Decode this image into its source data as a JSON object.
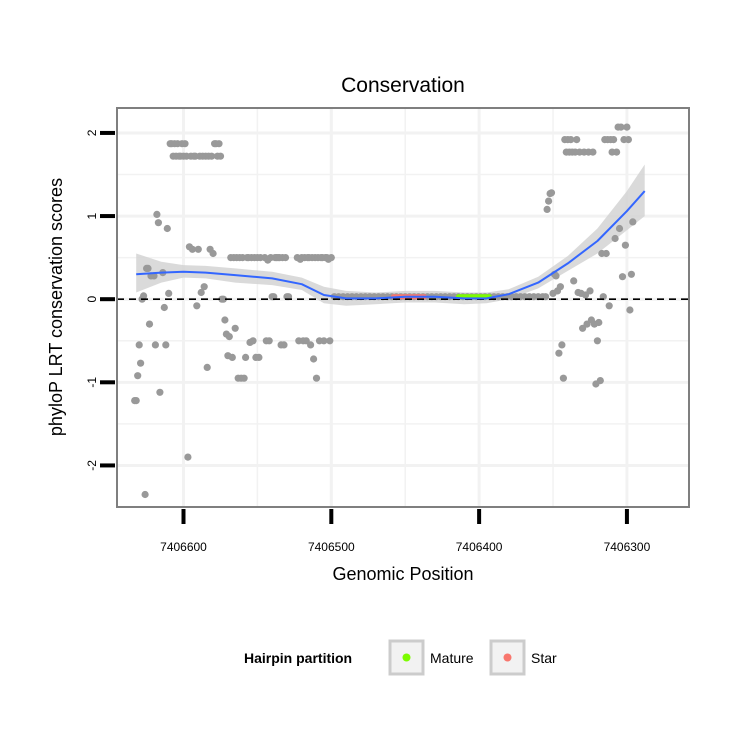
{
  "chart_data": {
    "type": "scatter",
    "title": "Conservation",
    "xlabel": "Genomic Position",
    "ylabel": "phyloP LRT conservation scores",
    "x_reversed": true,
    "xlim": [
      7406645,
      7406258
    ],
    "ylim": [
      -2.5,
      2.3
    ],
    "x_ticks": [
      7406600,
      7406500,
      7406400,
      7406300
    ],
    "x_tick_labels": [
      "7406600",
      "7406500",
      "7406400",
      "7406300"
    ],
    "y_ticks": [
      -2,
      -1,
      0,
      1,
      2
    ],
    "y_tick_labels": [
      "-2",
      "-1",
      "0",
      "1",
      "2"
    ],
    "reference_line": {
      "y": 0,
      "style": "dashed"
    },
    "colors": {
      "points": "#999999",
      "smooth": "#3366FF",
      "ribbon": "#d3d3d3",
      "mature": "#7CFC00",
      "star": "#F8766D",
      "grid": "#f2f2f2",
      "panel_border": "#7f7f7f"
    },
    "smooth_line": {
      "x": [
        7406632,
        7406615,
        7406600,
        7406585,
        7406565,
        7406540,
        7406520,
        7406505,
        7406490,
        7406470,
        7406450,
        7406430,
        7406410,
        7406395,
        7406380,
        7406360,
        7406340,
        7406320,
        7406300,
        7406288
      ],
      "y": [
        0.3,
        0.32,
        0.33,
        0.32,
        0.29,
        0.25,
        0.18,
        0.05,
        0.01,
        0.01,
        0.03,
        0.03,
        0.01,
        0.01,
        0.06,
        0.2,
        0.43,
        0.7,
        1.06,
        1.3
      ],
      "ci_low": [
        0.08,
        0.2,
        0.26,
        0.25,
        0.2,
        0.17,
        0.11,
        -0.05,
        -0.08,
        -0.06,
        -0.04,
        -0.04,
        -0.06,
        -0.05,
        0.0,
        0.13,
        0.34,
        0.55,
        0.83,
        1.0
      ],
      "ci_high": [
        0.55,
        0.45,
        0.41,
        0.4,
        0.37,
        0.33,
        0.26,
        0.15,
        0.1,
        0.08,
        0.1,
        0.1,
        0.08,
        0.08,
        0.12,
        0.27,
        0.52,
        0.85,
        1.3,
        1.62
      ]
    },
    "partitions": [
      {
        "name": "Mature",
        "x_range": [
          7406414,
          7406393
        ]
      },
      {
        "name": "Star",
        "x_range": [
          7406458,
          7406437
        ]
      }
    ],
    "points": [
      [
        7406633,
        -1.22
      ],
      [
        7406632,
        -1.22
      ],
      [
        7406631,
        -0.92
      ],
      [
        7406630,
        -0.55
      ],
      [
        7406629,
        -0.77
      ],
      [
        7406628,
        0.0
      ],
      [
        7406627,
        0.04
      ],
      [
        7406626,
        -2.35
      ],
      [
        7406625,
        0.37
      ],
      [
        7406624,
        0.37
      ],
      [
        7406623,
        -0.3
      ],
      [
        7406622,
        0.28
      ],
      [
        7406620,
        0.28
      ],
      [
        7406619,
        -0.55
      ],
      [
        7406618,
        1.02
      ],
      [
        7406617,
        0.92
      ],
      [
        7406616,
        -1.12
      ],
      [
        7406614,
        0.32
      ],
      [
        7406613,
        -0.1
      ],
      [
        7406612,
        -0.55
      ],
      [
        7406611,
        0.85
      ],
      [
        7406610,
        0.07
      ],
      [
        7406609,
        1.87
      ],
      [
        7406608,
        1.87
      ],
      [
        7406607,
        1.72
      ],
      [
        7406606,
        1.87
      ],
      [
        7406605,
        1.72
      ],
      [
        7406604,
        1.87
      ],
      [
        7406603,
        1.72
      ],
      [
        7406602,
        1.72
      ],
      [
        7406601,
        1.87
      ],
      [
        7406600,
        1.72
      ],
      [
        7406599,
        1.87
      ],
      [
        7406598,
        1.72
      ],
      [
        7406597,
        -1.9
      ],
      [
        7406596,
        0.63
      ],
      [
        7406595,
        1.72
      ],
      [
        7406594,
        0.6
      ],
      [
        7406593,
        1.72
      ],
      [
        7406592,
        1.72
      ],
      [
        7406591,
        -0.08
      ],
      [
        7406590,
        0.6
      ],
      [
        7406589,
        1.72
      ],
      [
        7406588,
        0.08
      ],
      [
        7406587,
        1.72
      ],
      [
        7406586,
        0.15
      ],
      [
        7406585,
        1.72
      ],
      [
        7406584,
        -0.82
      ],
      [
        7406583,
        1.72
      ],
      [
        7406582,
        0.6
      ],
      [
        7406581,
        1.72
      ],
      [
        7406580,
        0.55
      ],
      [
        7406579,
        1.87
      ],
      [
        7406578,
        1.87
      ],
      [
        7406577,
        1.72
      ],
      [
        7406576,
        1.87
      ],
      [
        7406575,
        1.72
      ],
      [
        7406574,
        0.0
      ],
      [
        7406573,
        0.0
      ],
      [
        7406572,
        -0.25
      ],
      [
        7406571,
        -0.42
      ],
      [
        7406570,
        -0.68
      ],
      [
        7406569,
        -0.45
      ],
      [
        7406568,
        0.5
      ],
      [
        7406567,
        -0.7
      ],
      [
        7406566,
        0.5
      ],
      [
        7406565,
        -0.35
      ],
      [
        7406564,
        0.5
      ],
      [
        7406563,
        -0.95
      ],
      [
        7406562,
        0.5
      ],
      [
        7406561,
        -0.95
      ],
      [
        7406560,
        0.5
      ],
      [
        7406559,
        -0.95
      ],
      [
        7406558,
        -0.7
      ],
      [
        7406557,
        0.5
      ],
      [
        7406556,
        0.5
      ],
      [
        7406555,
        -0.52
      ],
      [
        7406554,
        0.5
      ],
      [
        7406553,
        -0.5
      ],
      [
        7406552,
        0.5
      ],
      [
        7406551,
        -0.7
      ],
      [
        7406550,
        0.5
      ],
      [
        7406549,
        -0.7
      ],
      [
        7406548,
        0.5
      ],
      [
        7406545,
        0.5
      ],
      [
        7406544,
        -0.5
      ],
      [
        7406543,
        0.47
      ],
      [
        7406542,
        -0.5
      ],
      [
        7406541,
        0.5
      ],
      [
        7406540,
        0.03
      ],
      [
        7406539,
        0.03
      ],
      [
        7406538,
        0.5
      ],
      [
        7406537,
        0.5
      ],
      [
        7406536,
        0.5
      ],
      [
        7406535,
        0.5
      ],
      [
        7406534,
        -0.55
      ],
      [
        7406533,
        0.5
      ],
      [
        7406532,
        -0.55
      ],
      [
        7406531,
        0.5
      ],
      [
        7406530,
        0.03
      ],
      [
        7406529,
        0.03
      ],
      [
        7406523,
        0.5
      ],
      [
        7406522,
        -0.5
      ],
      [
        7406521,
        0.48
      ],
      [
        7406520,
        0.5
      ],
      [
        7406519,
        -0.5
      ],
      [
        7406518,
        0.5
      ],
      [
        7406517,
        -0.5
      ],
      [
        7406516,
        0.5
      ],
      [
        7406515,
        0.5
      ],
      [
        7406514,
        -0.55
      ],
      [
        7406513,
        0.5
      ],
      [
        7406512,
        -0.72
      ],
      [
        7406511,
        0.5
      ],
      [
        7406510,
        -0.95
      ],
      [
        7406509,
        0.5
      ],
      [
        7406508,
        -0.5
      ],
      [
        7406507,
        0.5
      ],
      [
        7406506,
        0.5
      ],
      [
        7406505,
        -0.5
      ],
      [
        7406504,
        0.5
      ],
      [
        7406503,
        0.5
      ],
      [
        7406502,
        0.48
      ],
      [
        7406501,
        -0.5
      ],
      [
        7406500,
        0.5
      ],
      [
        7406498,
        0.03
      ],
      [
        7406495,
        0.03
      ],
      [
        7406492,
        0.03
      ],
      [
        7406489,
        0.03
      ],
      [
        7406486,
        0.03
      ],
      [
        7406483,
        0.03
      ],
      [
        7406480,
        0.03
      ],
      [
        7406477,
        0.03
      ],
      [
        7406474,
        0.03
      ],
      [
        7406471,
        0.03
      ],
      [
        7406468,
        0.03
      ],
      [
        7406465,
        0.03
      ],
      [
        7406462,
        0.03
      ],
      [
        7406459,
        0.03
      ],
      [
        7406456,
        0.03
      ],
      [
        7406453,
        0.03
      ],
      [
        7406450,
        0.03
      ],
      [
        7406447,
        0.03
      ],
      [
        7406444,
        0.03
      ],
      [
        7406441,
        0.03
      ],
      [
        7406438,
        0.03
      ],
      [
        7406435,
        0.03
      ],
      [
        7406432,
        0.03
      ],
      [
        7406429,
        0.03
      ],
      [
        7406426,
        0.03
      ],
      [
        7406423,
        0.03
      ],
      [
        7406420,
        0.03
      ],
      [
        7406417,
        0.03
      ],
      [
        7406414,
        0.03
      ],
      [
        7406411,
        0.03
      ],
      [
        7406408,
        0.03
      ],
      [
        7406405,
        0.03
      ],
      [
        7406402,
        0.03
      ],
      [
        7406399,
        0.03
      ],
      [
        7406396,
        0.03
      ],
      [
        7406393,
        0.03
      ],
      [
        7406390,
        0.03
      ],
      [
        7406387,
        0.03
      ],
      [
        7406384,
        0.03
      ],
      [
        7406381,
        0.03
      ],
      [
        7406378,
        0.03
      ],
      [
        7406375,
        0.03
      ],
      [
        7406372,
        0.03
      ],
      [
        7406369,
        0.03
      ],
      [
        7406366,
        0.03
      ],
      [
        7406363,
        0.03
      ],
      [
        7406360,
        0.03
      ],
      [
        7406357,
        0.03
      ],
      [
        7406355,
        0.03
      ],
      [
        7406354,
        1.08
      ],
      [
        7406353,
        1.18
      ],
      [
        7406352,
        1.27
      ],
      [
        7406351,
        1.28
      ],
      [
        7406350,
        0.07
      ],
      [
        7406349,
        0.3
      ],
      [
        7406348,
        0.28
      ],
      [
        7406347,
        0.1
      ],
      [
        7406346,
        -0.65
      ],
      [
        7406345,
        0.15
      ],
      [
        7406344,
        -0.55
      ],
      [
        7406343,
        -0.95
      ],
      [
        7406342,
        1.92
      ],
      [
        7406341,
        1.77
      ],
      [
        7406340,
        1.92
      ],
      [
        7406339,
        1.77
      ],
      [
        7406338,
        1.92
      ],
      [
        7406337,
        1.77
      ],
      [
        7406336,
        0.22
      ],
      [
        7406335,
        1.77
      ],
      [
        7406334,
        1.92
      ],
      [
        7406333,
        0.08
      ],
      [
        7406332,
        1.77
      ],
      [
        7406331,
        0.07
      ],
      [
        7406330,
        -0.35
      ],
      [
        7406329,
        1.77
      ],
      [
        7406328,
        0.05
      ],
      [
        7406327,
        -0.3
      ],
      [
        7406326,
        1.77
      ],
      [
        7406325,
        0.1
      ],
      [
        7406324,
        -0.25
      ],
      [
        7406323,
        1.77
      ],
      [
        7406322,
        -0.3
      ],
      [
        7406321,
        -1.02
      ],
      [
        7406320,
        -0.5
      ],
      [
        7406319,
        -0.28
      ],
      [
        7406318,
        -0.98
      ],
      [
        7406317,
        0.55
      ],
      [
        7406316,
        0.03
      ],
      [
        7406315,
        1.92
      ],
      [
        7406314,
        0.55
      ],
      [
        7406313,
        1.92
      ],
      [
        7406312,
        -0.08
      ],
      [
        7406311,
        1.92
      ],
      [
        7406310,
        1.77
      ],
      [
        7406309,
        1.92
      ],
      [
        7406308,
        0.73
      ],
      [
        7406307,
        1.77
      ],
      [
        7406306,
        2.07
      ],
      [
        7406305,
        0.85
      ],
      [
        7406304,
        2.07
      ],
      [
        7406303,
        0.27
      ],
      [
        7406302,
        1.92
      ],
      [
        7406301,
        0.65
      ],
      [
        7406300,
        2.07
      ],
      [
        7406299,
        1.92
      ],
      [
        7406298,
        -0.13
      ],
      [
        7406297,
        0.3
      ],
      [
        7406296,
        0.93
      ]
    ],
    "legend": {
      "title": "Hairpin partition",
      "entries": [
        {
          "label": "Mature",
          "color": "#7CFC00"
        },
        {
          "label": "Star",
          "color": "#F8766D"
        }
      ]
    }
  }
}
